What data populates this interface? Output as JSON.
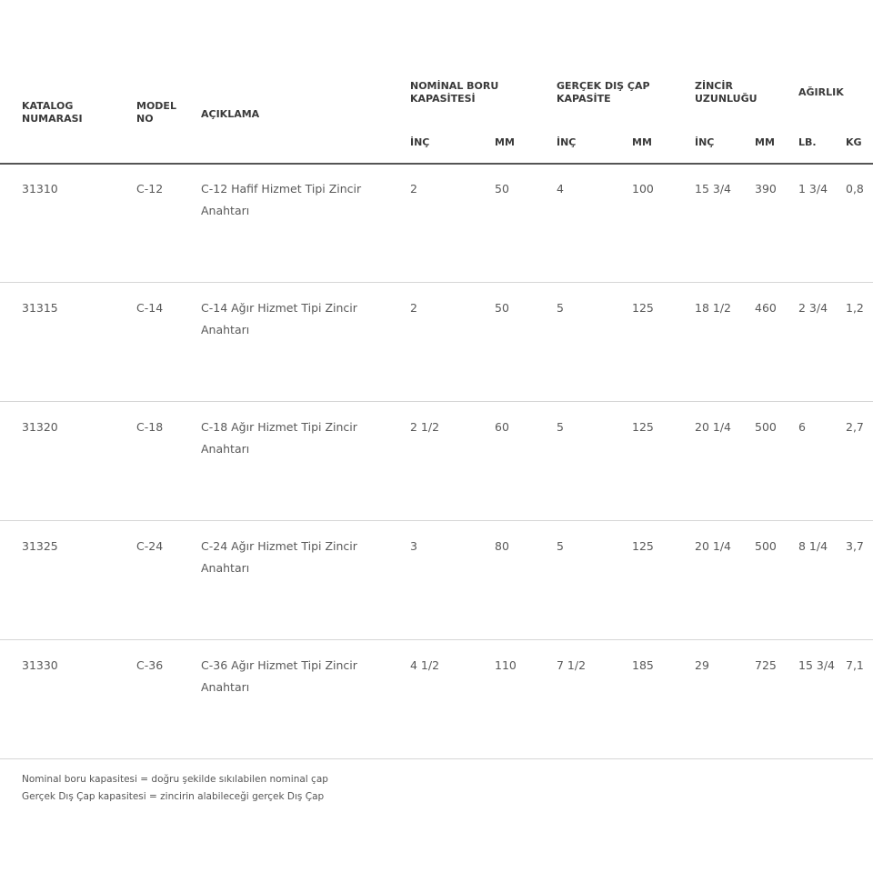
{
  "headers": {
    "catalog": "KATALOG NUMARASI",
    "model": "MODEL NO",
    "description": "AÇIKLAMA",
    "nominal": "NOMİNAL BORU KAPASİTESİ",
    "actual": "GERÇEK DIŞ ÇAP KAPASİTE",
    "chain": "ZİNCİR UZUNLUĞU",
    "weight": "AĞIRLIK",
    "sub": [
      "İNÇ",
      "MM",
      "İNÇ",
      "MM",
      "İNÇ",
      "MM",
      "LB.",
      "KG"
    ]
  },
  "rows": [
    [
      "31310",
      "C-12",
      "C-12 Hafif Hizmet Tipi Zincir Anahtarı",
      "2",
      "50",
      "4",
      "100",
      "15 3/4",
      "390",
      "1 3/4",
      "0,8"
    ],
    [
      "31315",
      "C-14",
      "C-14 Ağır Hizmet Tipi Zincir Anahtarı",
      "2",
      "50",
      "5",
      "125",
      "18 1/2",
      "460",
      "2 3/4",
      "1,2"
    ],
    [
      "31320",
      "C-18",
      "C-18 Ağır Hizmet Tipi Zincir Anahtarı",
      "2 1/2",
      "60",
      "5",
      "125",
      "20 1/4",
      "500",
      "6",
      "2,7"
    ],
    [
      "31325",
      "C-24",
      "C-24 Ağır Hizmet Tipi Zincir Anahtarı",
      "3",
      "80",
      "5",
      "125",
      "20 1/4",
      "500",
      "8 1/4",
      "3,7"
    ],
    [
      "31330",
      "C-36",
      "C-36 Ağır Hizmet Tipi Zincir Anahtarı",
      "4 1/2",
      "110",
      "7 1/2",
      "185",
      "29",
      "725",
      "15 3/4",
      "7,1"
    ]
  ],
  "notes": [
    "Nominal boru kapasitesi = doğru şekilde sıkılabilen nominal çap",
    "Gerçek Dış Çap kapasitesi = zincirin alabileceği gerçek Dış Çap"
  ]
}
